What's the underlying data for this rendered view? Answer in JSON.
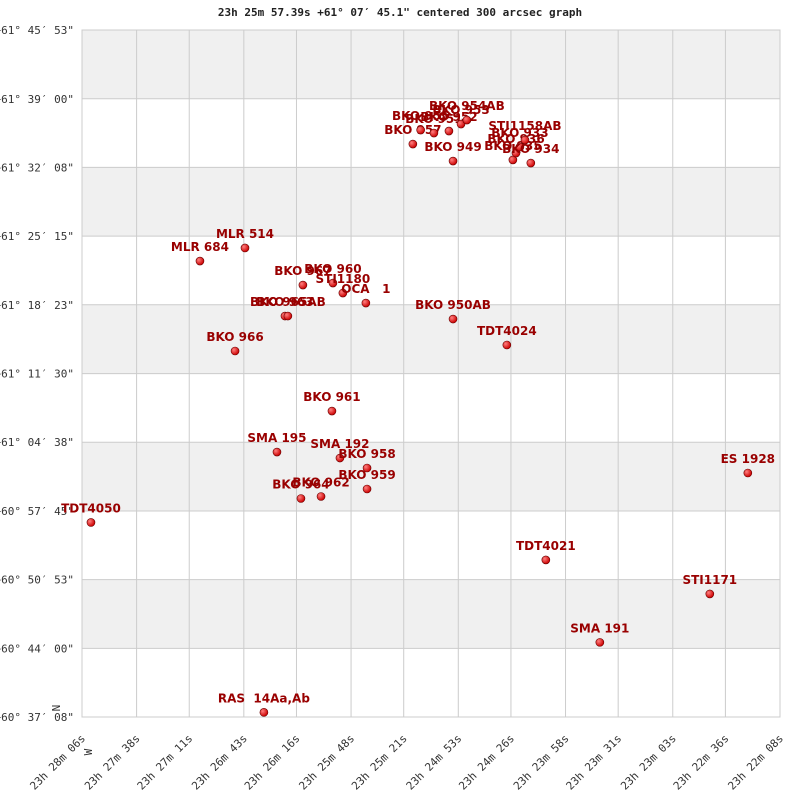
{
  "chart_data": {
    "type": "scatter",
    "title": "23h 25m 57.39s +61° 07′ 45.1\" centered 300 arcsec graph",
    "north_label": "N",
    "west_label": "W",
    "color": "#cc0000",
    "grid": true,
    "xlim": [
      366,
      8
    ],
    "ylim": [
      37.133,
      105.883
    ],
    "xticks": [
      {
        "value": 366,
        "label": "23h 28m 06s"
      },
      {
        "value": 338,
        "label": "23h 27m 38s"
      },
      {
        "value": 311,
        "label": "23h 27m 11s"
      },
      {
        "value": 283,
        "label": "23h 26m 43s"
      },
      {
        "value": 256,
        "label": "23h 26m 16s"
      },
      {
        "value": 228,
        "label": "23h 25m 48s"
      },
      {
        "value": 201,
        "label": "23h 25m 21s"
      },
      {
        "value": 173,
        "label": "23h 24m 53s"
      },
      {
        "value": 146,
        "label": "23h 24m 26s"
      },
      {
        "value": 118,
        "label": "23h 23m 58s"
      },
      {
        "value": 91,
        "label": "23h 23m 31s"
      },
      {
        "value": 63,
        "label": "23h 23m 03s"
      },
      {
        "value": 36,
        "label": "23h 22m 36s"
      },
      {
        "value": 8,
        "label": "23h 22m 08s"
      }
    ],
    "yticks": [
      {
        "value": 37.133,
        "label": "+60° 37′ 08\""
      },
      {
        "value": 44.0,
        "label": "+60° 44′ 00\""
      },
      {
        "value": 50.883,
        "label": "+60° 50′ 53\""
      },
      {
        "value": 57.75,
        "label": "+60° 57′ 45\""
      },
      {
        "value": 64.633,
        "label": "+61° 04′ 38\""
      },
      {
        "value": 71.5,
        "label": "+61° 11′ 30\""
      },
      {
        "value": 78.383,
        "label": "+61° 18′ 23\""
      },
      {
        "value": 85.25,
        "label": "+61° 25′ 15\""
      },
      {
        "value": 92.133,
        "label": "+61° 32′ 08\""
      },
      {
        "value": 99.0,
        "label": "+61° 39′ 00\""
      },
      {
        "value": 105.883,
        "label": "+61° 45′ 53\""
      }
    ],
    "point_labels": [
      "TDT4050",
      "RAS  14Aa,Ab",
      "BKO 964",
      "BKO 962",
      "SMA 195",
      "SMA 192",
      "BKO 958",
      "BKO 959",
      "BKO 961",
      "ES 1928",
      "TDT4021",
      "STI1171",
      "SMA 191",
      "BKO 966",
      "BKO 963",
      "BKO 965AB",
      "BKO 950AB",
      "TDT4024",
      "MLR 684",
      "MLR 514",
      "BKO 960",
      "BKO 967",
      "STI1180",
      "OCA   1",
      "BKO 949",
      "BKO 957",
      "BKO 955",
      "BKO 951",
      "BKO 952",
      "BKO 953",
      "BKO 954AB",
      "BKO 935",
      "BKO 936",
      "BKO 933",
      "BKO 934",
      "STI1158AB"
    ],
    "x": [
      361.4,
      272.7,
      253.7,
      243.4,
      266,
      233.7,
      219.8,
      219.8,
      237.8,
      24.5,
      128.1,
      44,
      100.4,
      287.5,
      261.9,
      260.4,
      175.7,
      148.1,
      305.5,
      282.4,
      237.3,
      252.7,
      232.2,
      220.4,
      175.7,
      196.3,
      192.3,
      185.5,
      177.8,
      171.6,
      168.6,
      145,
      143.4,
      141.4,
      135.8,
      138.8
    ],
    "values": [
      56.6,
      37.6,
      59.0,
      59.2,
      63.65,
      63.05,
      62.05,
      59.95,
      67.75,
      61.55,
      52.85,
      49.45,
      44.6,
      73.76,
      77.26,
      77.26,
      76.96,
      74.36,
      82.76,
      84.07,
      80.56,
      80.36,
      79.56,
      78.56,
      92.77,
      94.47,
      95.87,
      95.57,
      95.77,
      96.47,
      96.87,
      92.88,
      93.57,
      94.17,
      92.57,
      94.87
    ]
  }
}
